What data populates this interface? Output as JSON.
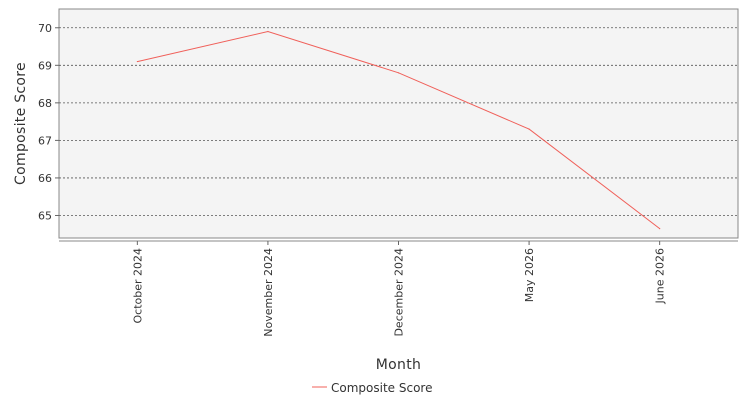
{
  "chart_data": {
    "type": "line",
    "categories": [
      "October 2024",
      "November 2024",
      "December 2024",
      "May 2026",
      "June 2026"
    ],
    "series": [
      {
        "name": "Composite Score",
        "values": [
          69.1,
          69.9,
          68.8,
          67.3,
          64.65
        ],
        "color": "#f0605a"
      }
    ],
    "xlabel": "Month",
    "ylabel": "Composite Score",
    "ylim": [
      64.4,
      70.5
    ],
    "yticks": [
      "65",
      "66",
      "67",
      "68",
      "69",
      "70"
    ],
    "grid": true,
    "legend": "bottom-center",
    "plot_background": "#f4f4f4",
    "grid_color": "#555555"
  }
}
